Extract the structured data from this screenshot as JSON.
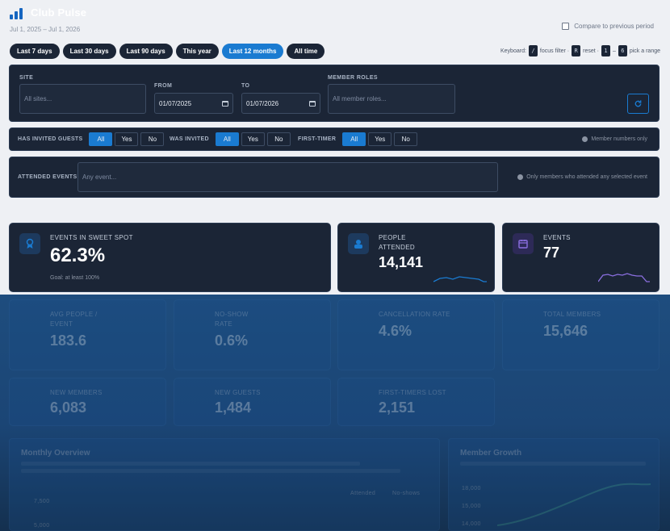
{
  "header": {
    "title": "Club Pulse",
    "date_range": "Jul 1, 2025 – Jul 1, 2026",
    "compare_label": "Compare to previous period"
  },
  "presets": [
    {
      "label": "Last 7 days",
      "active": false
    },
    {
      "label": "Last 30 days",
      "active": false
    },
    {
      "label": "Last 90 days",
      "active": false
    },
    {
      "label": "This year",
      "active": false
    },
    {
      "label": "Last 12 months",
      "active": true
    },
    {
      "label": "All time",
      "active": false
    }
  ],
  "keyboard": {
    "label": "Keyboard:",
    "k1": "/",
    "t1": "focus filter ·",
    "k2": "R",
    "t2": "reset ·",
    "k3": "1",
    "t3": "–",
    "k4": "6",
    "t4": "pick a range"
  },
  "filters": {
    "site_label": "SITE",
    "site_placeholder": "All sites...",
    "from_label": "FROM",
    "from_value": "01/07/2025",
    "to_label": "TO",
    "to_value": "01/07/2026",
    "roles_label": "MEMBER ROLES",
    "roles_placeholder": "All member roles..."
  },
  "toggles": {
    "invited_guests_label": "HAS INVITED GUESTS",
    "was_invited_label": "WAS INVITED",
    "first_timer_label": "FIRST-TIMER",
    "all": "All",
    "yes": "Yes",
    "no": "No",
    "note": "Member numbers only"
  },
  "events_filter": {
    "label": "ATTENDED EVENTS",
    "placeholder": "Any event...",
    "note": "Only members who attended any selected event"
  },
  "cards": {
    "sweet_spot": {
      "title": "EVENTS IN SWEET SPOT",
      "value": "62.3%",
      "goal": "Goal: at least 100%",
      "icon": "award-icon",
      "color": "#1a7bd1"
    },
    "people": {
      "title1": "PEOPLE",
      "title2": "ATTENDED",
      "value": "14,141",
      "icon": "people-icon",
      "color": "#1a7bd1"
    },
    "events": {
      "title": "EVENTS",
      "value": "77",
      "icon": "calendar-icon",
      "color": "#8b6fe0"
    }
  },
  "dimmed": {
    "avg_people_1": "AVG PEOPLE /",
    "avg_people_2": "EVENT",
    "avg_people_value": "183.6",
    "no_show_1": "NO-SHOW",
    "no_show_2": "RATE",
    "no_show_value": "0.6%",
    "cancel_title": "CANCELLATION RATE",
    "cancel_value": "4.6%",
    "total_title": "TOTAL MEMBERS",
    "total_value": "15,646",
    "new_members_title": "NEW MEMBERS",
    "new_members_value": "6,083",
    "new_guests_title": "NEW GUESTS",
    "new_guests_value": "1,484",
    "first_timers_title": "FIRST-TIMERS LOST",
    "first_timers_value": "2,151",
    "monthly_title": "Monthly Overview",
    "member_growth_title": "Member Growth",
    "legend_attended": "Attended",
    "legend_noshows": "No-shows",
    "y1": "7,500",
    "y2": "5,000",
    "g1": "18,000",
    "g2": "15,000",
    "g3": "14,000"
  }
}
